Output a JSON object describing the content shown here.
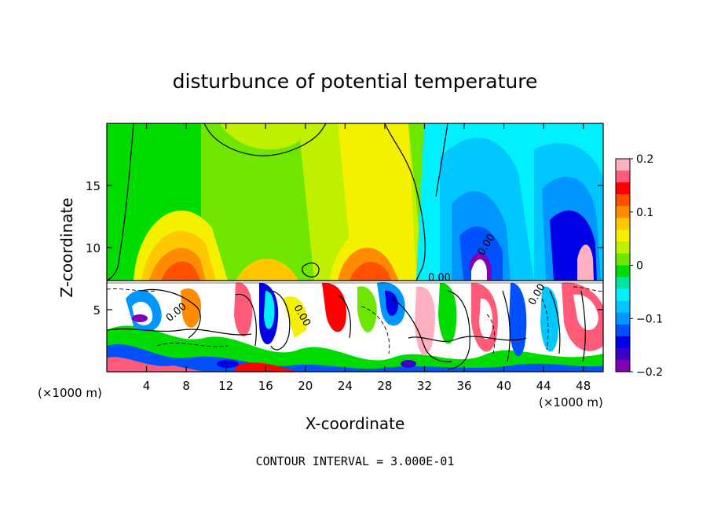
{
  "chart_data": {
    "type": "heatmap",
    "title": "disturbunce of potential temperature",
    "xlabel": "X-coordinate",
    "ylabel": "Z-coordinate",
    "x_unit_label": "(×1000 m)",
    "xlim": [
      0,
      50
    ],
    "ylim": [
      0,
      20
    ],
    "x_ticks": [
      4,
      8,
      12,
      16,
      20,
      24,
      28,
      32,
      36,
      40,
      44,
      48
    ],
    "y_ticks": [
      5,
      10,
      15
    ],
    "colorbar": {
      "range": [
        -0.2,
        0.2
      ],
      "tick_values": [
        0.2,
        0.1,
        0,
        -0.1,
        -0.2
      ],
      "tick_labels": [
        "0.2",
        "0.1",
        "0",
        "−0.1",
        "−0.2"
      ],
      "colors": [
        "#ffb0c0",
        "#ff5a78",
        "#ff0000",
        "#ff5000",
        "#ff8c00",
        "#ffc800",
        "#f5f000",
        "#bef000",
        "#6ee600",
        "#00dc00",
        "#00e6a0",
        "#00f0ff",
        "#00c8ff",
        "#0096ff",
        "#0050ff",
        "#0000e6",
        "#3c00c8",
        "#8200b4"
      ]
    },
    "contour_labels": [
      "0.00",
      "0.00",
      "0.00",
      "0.00",
      "0.00"
    ],
    "annotation": "CONTOUR INTERVAL = 3.000E-01",
    "grid": false
  }
}
